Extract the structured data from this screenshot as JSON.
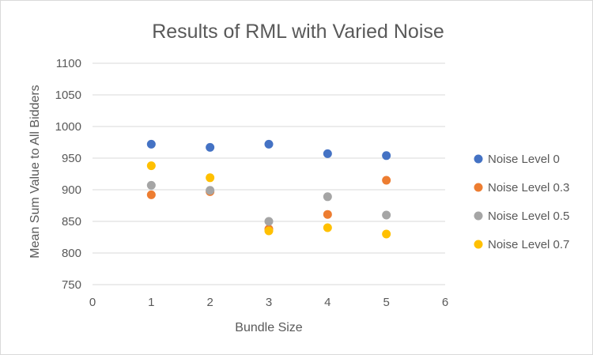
{
  "chart_data": {
    "type": "scatter",
    "title": "Results of RML with Varied Noise",
    "xlabel": "Bundle Size",
    "ylabel": "Mean Sum Value to All Bidders",
    "xlim": [
      0,
      6
    ],
    "ylim": [
      750,
      1100
    ],
    "xticks": [
      "0",
      "1",
      "2",
      "3",
      "4",
      "5",
      "6"
    ],
    "yticks": [
      "750",
      "800",
      "850",
      "900",
      "950",
      "1000",
      "1050",
      "1100"
    ],
    "grid": "horizontal",
    "legend_position": "right",
    "series": [
      {
        "name": "Noise Level 0",
        "color": "#4472C4",
        "x": [
          1,
          2,
          3,
          4,
          5
        ],
        "y": [
          972,
          967,
          972,
          957,
          954
        ]
      },
      {
        "name": "Noise Level 0.3",
        "color": "#ED7D31",
        "x": [
          1,
          2,
          3,
          4,
          5
        ],
        "y": [
          892,
          897,
          838,
          861,
          915
        ]
      },
      {
        "name": "Noise Level 0.5",
        "color": "#A5A5A5",
        "x": [
          1,
          2,
          3,
          4,
          5
        ],
        "y": [
          907,
          899,
          850,
          889,
          860
        ]
      },
      {
        "name": "Noise Level 0.7",
        "color": "#FFC000",
        "x": [
          1,
          2,
          3,
          4,
          5
        ],
        "y": [
          938,
          919,
          835,
          840,
          830
        ]
      }
    ]
  }
}
